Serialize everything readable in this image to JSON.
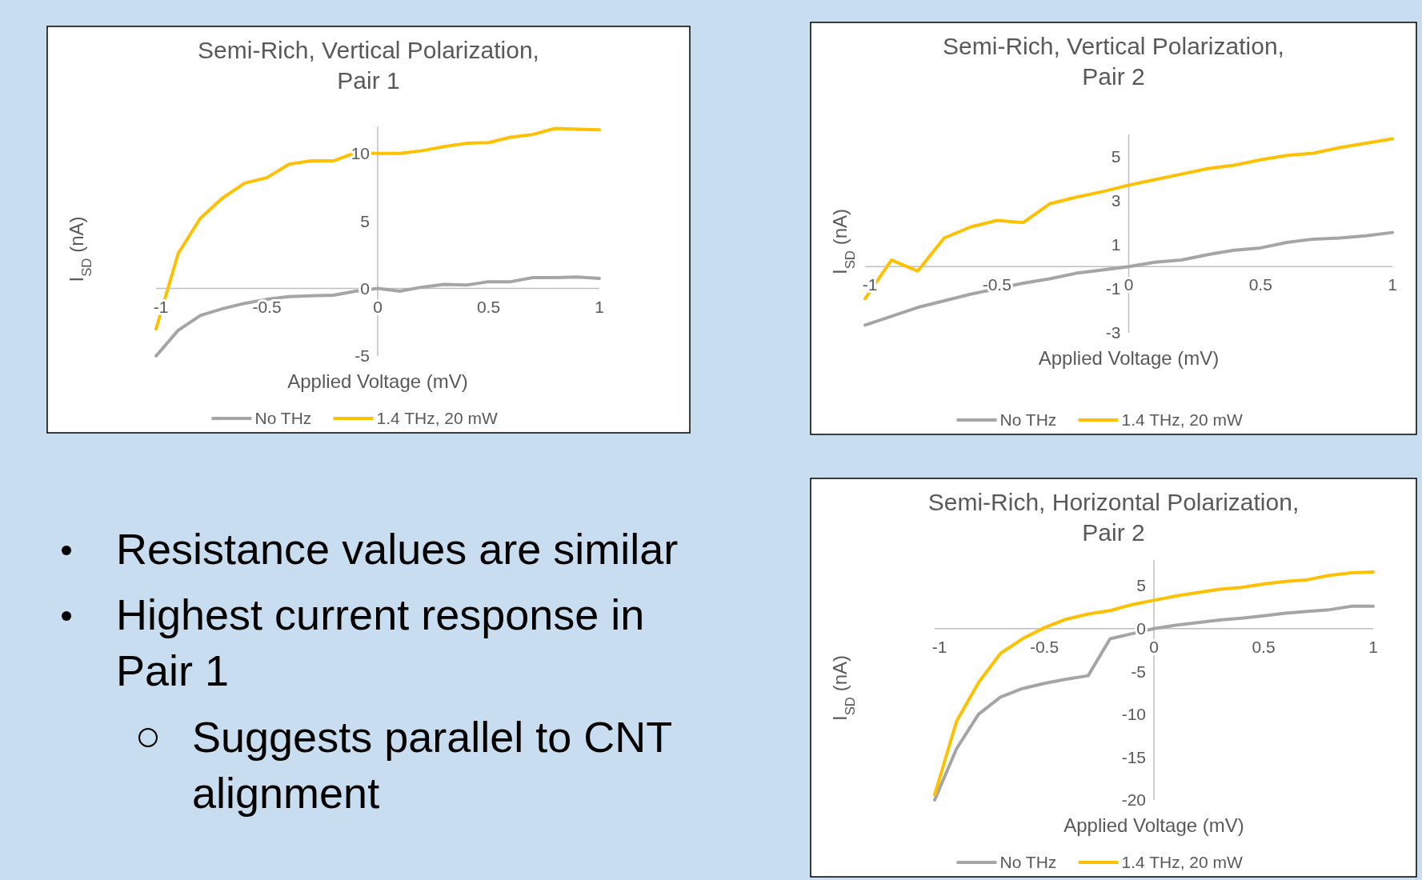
{
  "chart_data": [
    {
      "type": "line",
      "title": "Semi-Rich, Vertical Polarization, Pair 1",
      "xlabel": "Applied Voltage (mV)",
      "ylabel": "I$_{SD}$ (nA)",
      "x": [
        -1,
        -0.9,
        -0.8,
        -0.7,
        -0.6,
        -0.5,
        -0.4,
        -0.3,
        -0.2,
        -0.1,
        0,
        0.1,
        0.2,
        0.3,
        0.4,
        0.5,
        0.6,
        0.7,
        0.8,
        0.9,
        1
      ],
      "xlim": [
        -1,
        1
      ],
      "xticks": [
        -1,
        -0.5,
        0,
        0.5,
        1
      ],
      "ylim": [
        -5,
        12
      ],
      "yticks": [
        -5,
        0,
        5,
        10
      ],
      "legend": "bottom",
      "series": [
        {
          "name": "No THz",
          "color": "#a5a5a5",
          "values": [
            -5,
            -3.1,
            -2,
            -1.5,
            -1.1,
            -0.8,
            -0.6,
            -0.55,
            -0.5,
            -0.2,
            0,
            -0.2,
            0.1,
            0.3,
            0.25,
            0.5,
            0.5,
            0.8,
            0.8,
            0.85,
            0.75
          ]
        },
        {
          "name": "1.4 THz, 20 mW",
          "color": "#ffc000",
          "values": [
            -3,
            2.6,
            5.2,
            6.7,
            7.8,
            8.2,
            9.2,
            9.45,
            9.45,
            10.05,
            10,
            10,
            10.2,
            10.5,
            10.75,
            10.8,
            11.2,
            11.4,
            11.85,
            11.8,
            11.75
          ]
        }
      ]
    },
    {
      "type": "line",
      "title": "Semi-Rich, Vertical Polarization, Pair 2",
      "xlabel": "Applied Voltage (mV)",
      "ylabel": "I$_{SD}$ (nA)",
      "x": [
        -1,
        -0.9,
        -0.8,
        -0.7,
        -0.6,
        -0.5,
        -0.4,
        -0.3,
        -0.2,
        -0.1,
        0,
        0.1,
        0.2,
        0.3,
        0.4,
        0.5,
        0.6,
        0.7,
        0.8,
        0.9,
        1
      ],
      "xlim": [
        -1,
        1
      ],
      "xticks": [
        -1,
        -0.5,
        0,
        0.5,
        1
      ],
      "ylim": [
        -3,
        6
      ],
      "yticks": [
        -3,
        -1,
        1,
        3,
        5
      ],
      "legend": "bottom",
      "series": [
        {
          "name": "No THz",
          "color": "#a5a5a5",
          "values": [
            -2.65,
            -2.25,
            -1.85,
            -1.55,
            -1.25,
            -1,
            -0.75,
            -0.55,
            -0.3,
            -0.15,
            0,
            0.2,
            0.3,
            0.55,
            0.75,
            0.85,
            1.1,
            1.25,
            1.3,
            1.4,
            1.55
          ]
        },
        {
          "name": "1.4 THz, 20 mW",
          "color": "#ffc000",
          "values": [
            -1.45,
            0.3,
            -0.2,
            1.3,
            1.8,
            2.1,
            2,
            2.85,
            3.15,
            3.4,
            3.7,
            3.95,
            4.2,
            4.45,
            4.6,
            4.85,
            5.05,
            5.15,
            5.4,
            5.6,
            5.8
          ]
        }
      ]
    },
    {
      "type": "line",
      "title": "Semi-Rich, Horizontal Polarization, Pair 2",
      "xlabel": "Applied Voltage (mV)",
      "ylabel": "I$_{SD}$ (nA)",
      "x": [
        -1,
        -0.9,
        -0.8,
        -0.7,
        -0.6,
        -0.5,
        -0.4,
        -0.3,
        -0.2,
        -0.1,
        0,
        0.1,
        0.2,
        0.3,
        0.4,
        0.5,
        0.6,
        0.7,
        0.8,
        0.9,
        1
      ],
      "xlim": [
        -1,
        1
      ],
      "xticks": [
        -1,
        -0.5,
        0,
        0.5,
        1
      ],
      "ylim": [
        -20,
        8
      ],
      "yticks": [
        -20,
        -15,
        -10,
        -5,
        0,
        5
      ],
      "legend": "bottom",
      "series": [
        {
          "name": "No THz",
          "color": "#a5a5a5",
          "values": [
            -20,
            -14,
            -10,
            -8,
            -7,
            -6.4,
            -5.9,
            -5.5,
            -1.2,
            -0.6,
            0,
            0.4,
            0.7,
            1,
            1.2,
            1.5,
            1.8,
            2,
            2.2,
            2.6,
            2.6
          ]
        },
        {
          "name": "1.4 THz, 20 mW",
          "color": "#ffc000",
          "values": [
            -19.4,
            -10.8,
            -6.3,
            -2.9,
            -1.2,
            0.1,
            1.1,
            1.7,
            2.1,
            2.8,
            3.3,
            3.8,
            4.2,
            4.6,
            4.8,
            5.2,
            5.5,
            5.7,
            6.2,
            6.5,
            6.6
          ]
        }
      ]
    },
    {
      "type": "other",
      "annotations": [
        "Resistance values are similar",
        "Highest current response in Pair 1",
        "Suggests parallel to CNT alignment"
      ]
    }
  ]
}
